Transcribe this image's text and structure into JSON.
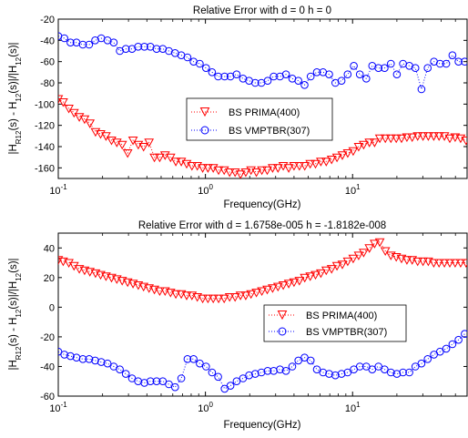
{
  "chart_data": [
    {
      "type": "scatter",
      "title": "Relative Error with d = 0  h = 0",
      "xlabel": "Frequency(GHz)",
      "ylabel_parts": [
        "|H",
        "R12",
        "(s) - H",
        "12",
        "(s)|/|H",
        "12",
        "(s)|"
      ],
      "xscale": "log",
      "xlim": [
        0.1,
        60
      ],
      "ylim": [
        -170,
        -20
      ],
      "xticks": [
        0.1,
        1,
        10
      ],
      "xtick_labels": [
        {
          "base": "10",
          "exp": "-1"
        },
        {
          "base": "10",
          "exp": "0"
        },
        {
          "base": "10",
          "exp": "1"
        }
      ],
      "yticks": [
        -160,
        -140,
        -120,
        -100,
        -80,
        -60,
        -40,
        -20
      ],
      "ytick_labels": [
        "-160",
        "-140",
        "-120",
        "-100",
        "-80",
        "-60",
        "-40",
        "-20"
      ],
      "legend_position": "center",
      "series": [
        {
          "name": "BS PRIMA(400)",
          "color": "#ff0000",
          "marker": "triangle-down",
          "line": "dotted",
          "x": [
            0.1,
            0.108,
            0.118,
            0.128,
            0.139,
            0.151,
            0.164,
            0.179,
            0.194,
            0.211,
            0.23,
            0.25,
            0.272,
            0.296,
            0.322,
            0.35,
            0.38,
            0.414,
            0.45,
            0.489,
            0.532,
            0.579,
            0.629,
            0.685,
            0.745,
            0.81,
            0.881,
            0.958,
            1.04,
            1.13,
            1.23,
            1.34,
            1.46,
            1.59,
            1.73,
            1.88,
            2.04,
            2.22,
            2.42,
            2.63,
            2.86,
            3.11,
            3.38,
            3.68,
            4.0,
            4.35,
            4.73,
            5.15,
            5.6,
            6.09,
            6.62,
            7.2,
            7.83,
            8.52,
            9.27,
            10.1,
            11.0,
            11.9,
            13.0,
            14.1,
            15.3,
            16.7,
            18.2,
            19.8,
            21.5,
            23.4,
            25.4,
            27.7,
            30.1,
            32.7,
            35.6,
            38.7,
            42.1,
            45.8,
            49.8,
            54.2,
            59.0
          ],
          "y": [
            -95,
            -98,
            -104,
            -108,
            -112,
            -114,
            -118,
            -126,
            -128,
            -130,
            -134,
            -136,
            -138,
            -146,
            -134,
            -138,
            -140,
            -136,
            -150,
            -150,
            -148,
            -150,
            -154,
            -154,
            -156,
            -158,
            -158,
            -160,
            -160,
            -160,
            -162,
            -162,
            -164,
            -164,
            -166,
            -164,
            -162,
            -164,
            -162,
            -162,
            -160,
            -160,
            -158,
            -160,
            -158,
            -158,
            -158,
            -156,
            -156,
            -154,
            -154,
            -152,
            -150,
            -148,
            -146,
            -144,
            -140,
            -138,
            -136,
            -136,
            -132,
            -132,
            -132,
            -132,
            -132,
            -131,
            -131,
            -130,
            -130,
            -130,
            -130,
            -130,
            -130,
            -132,
            -131,
            -132,
            -134
          ]
        },
        {
          "name": "BS VMPTBR(307)",
          "color": "#0000ff",
          "marker": "circle",
          "line": "dotted",
          "x": [
            0.1,
            0.11,
            0.121,
            0.133,
            0.147,
            0.162,
            0.178,
            0.196,
            0.216,
            0.238,
            0.262,
            0.288,
            0.317,
            0.349,
            0.385,
            0.423,
            0.466,
            0.513,
            0.565,
            0.622,
            0.685,
            0.755,
            0.831,
            0.915,
            1.01,
            1.11,
            1.22,
            1.35,
            1.48,
            1.63,
            1.8,
            1.98,
            2.18,
            2.4,
            2.65,
            2.91,
            3.21,
            3.53,
            3.89,
            4.28,
            4.72,
            5.19,
            5.72,
            6.3,
            6.93,
            7.63,
            8.41,
            9.26,
            10.2,
            11.2,
            12.4,
            13.6,
            15.0,
            16.5,
            18.2,
            20.0,
            22.0,
            24.3,
            26.7,
            29.4,
            32.4,
            35.7,
            39.3,
            43.3,
            47.7,
            52.5,
            57.8
          ],
          "y": [
            -36,
            -38,
            -42,
            -42,
            -44,
            -44,
            -40,
            -38,
            -40,
            -42,
            -50,
            -48,
            -48,
            -46,
            -46,
            -46,
            -48,
            -48,
            -50,
            -52,
            -54,
            -56,
            -60,
            -62,
            -66,
            -70,
            -74,
            -74,
            -74,
            -72,
            -76,
            -78,
            -80,
            -80,
            -78,
            -74,
            -74,
            -72,
            -76,
            -78,
            -82,
            -74,
            -70,
            -70,
            -72,
            -80,
            -78,
            -72,
            -64,
            -72,
            -76,
            -64,
            -66,
            -66,
            -62,
            -72,
            -62,
            -64,
            -66,
            -86,
            -66,
            -60,
            -62,
            -62,
            -54,
            -60,
            -60
          ]
        }
      ]
    },
    {
      "type": "scatter",
      "title": "Relative Error with d = 1.6758e-005  h = -1.8182e-008",
      "xlabel": "Frequency(GHz)",
      "ylabel_parts": [
        "|H",
        "R12",
        "(s) - H",
        "12",
        "(s)|/|H",
        "12",
        "(s)|"
      ],
      "xscale": "log",
      "xlim": [
        0.1,
        60
      ],
      "ylim": [
        -60,
        50
      ],
      "xticks": [
        0.1,
        1,
        10
      ],
      "xtick_labels": [
        {
          "base": "10",
          "exp": "-1"
        },
        {
          "base": "10",
          "exp": "0"
        },
        {
          "base": "10",
          "exp": "1"
        }
      ],
      "yticks": [
        -60,
        -40,
        -20,
        0,
        20,
        40
      ],
      "ytick_labels": [
        "-60",
        "-40",
        "-20",
        "0",
        "20",
        "40"
      ],
      "legend_position": "right",
      "series": [
        {
          "name": "BS PRIMA(400)",
          "color": "#ff0000",
          "marker": "triangle-down",
          "line": "dotted",
          "x": [
            0.1,
            0.108,
            0.118,
            0.128,
            0.139,
            0.151,
            0.164,
            0.179,
            0.194,
            0.211,
            0.23,
            0.25,
            0.272,
            0.296,
            0.322,
            0.35,
            0.38,
            0.414,
            0.45,
            0.489,
            0.532,
            0.579,
            0.629,
            0.685,
            0.745,
            0.81,
            0.881,
            0.958,
            1.04,
            1.13,
            1.23,
            1.34,
            1.46,
            1.59,
            1.73,
            1.88,
            2.04,
            2.22,
            2.42,
            2.63,
            2.86,
            3.11,
            3.38,
            3.68,
            4.0,
            4.35,
            4.73,
            5.15,
            5.6,
            6.09,
            6.62,
            7.2,
            7.83,
            8.52,
            9.27,
            10.1,
            11.0,
            11.9,
            13.0,
            14.1,
            15.3,
            16.7,
            18.2,
            19.8,
            21.5,
            23.4,
            25.4,
            27.7,
            30.1,
            32.7,
            35.6,
            38.7,
            42.1,
            45.8,
            49.8,
            54.2,
            59.0
          ],
          "y": [
            32,
            31,
            30,
            28,
            26,
            25,
            24,
            23,
            22,
            21,
            20,
            19,
            18,
            17,
            16,
            15,
            14,
            13,
            12,
            11,
            11,
            10,
            9,
            9,
            8,
            8,
            7,
            6,
            6,
            6,
            6,
            6,
            7,
            7,
            8,
            8,
            9,
            10,
            11,
            12,
            13,
            14,
            15,
            16,
            17,
            18,
            20,
            21,
            22,
            23,
            25,
            26,
            28,
            29,
            31,
            33,
            35,
            37,
            40,
            43,
            44,
            38,
            35,
            34,
            33,
            32,
            32,
            31,
            31,
            31,
            30,
            30,
            30,
            30,
            30,
            30,
            30
          ]
        },
        {
          "name": "BS VMPTBR(307)",
          "color": "#0000ff",
          "marker": "circle",
          "line": "dotted",
          "x": [
            0.1,
            0.11,
            0.121,
            0.133,
            0.147,
            0.162,
            0.178,
            0.196,
            0.216,
            0.238,
            0.262,
            0.288,
            0.317,
            0.349,
            0.385,
            0.423,
            0.466,
            0.513,
            0.565,
            0.622,
            0.685,
            0.755,
            0.831,
            0.915,
            1.01,
            1.11,
            1.22,
            1.35,
            1.48,
            1.63,
            1.8,
            1.98,
            2.18,
            2.4,
            2.65,
            2.91,
            3.21,
            3.53,
            3.89,
            4.28,
            4.72,
            5.19,
            5.72,
            6.3,
            6.93,
            7.63,
            8.41,
            9.26,
            10.2,
            11.2,
            12.4,
            13.6,
            15.0,
            16.5,
            18.2,
            20.0,
            22.0,
            24.3,
            26.7,
            29.4,
            32.4,
            35.7,
            39.3,
            43.3,
            47.7,
            52.5,
            57.8
          ],
          "y": [
            -30,
            -32,
            -33,
            -34,
            -35,
            -35,
            -36,
            -37,
            -38,
            -40,
            -42,
            -45,
            -48,
            -50,
            -51,
            -50,
            -50,
            -50,
            -52,
            -54,
            -48,
            -35,
            -35,
            -38,
            -40,
            -44,
            -47,
            -55,
            -53,
            -50,
            -48,
            -46,
            -45,
            -44,
            -43,
            -43,
            -42,
            -43,
            -40,
            -36,
            -34,
            -36,
            -42,
            -44,
            -45,
            -46,
            -45,
            -44,
            -42,
            -40,
            -40,
            -42,
            -40,
            -42,
            -44,
            -45,
            -44,
            -44,
            -40,
            -38,
            -35,
            -32,
            -30,
            -28,
            -25,
            -22,
            -18
          ]
        }
      ]
    }
  ]
}
